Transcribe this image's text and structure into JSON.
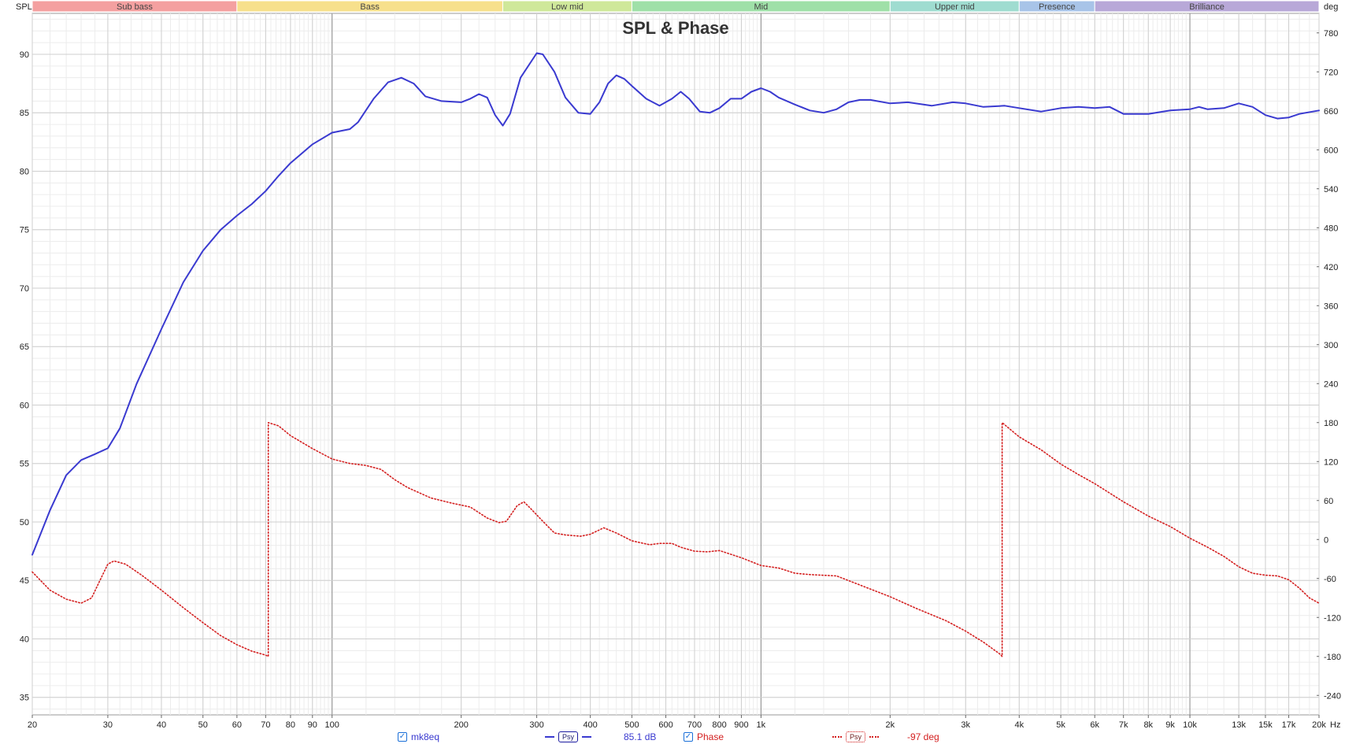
{
  "chart_data": {
    "type": "line",
    "title": "SPL & Phase",
    "y_left_label": "SPL",
    "y_right_label": "deg",
    "x_unit_label": "Hz",
    "x_scale": "log",
    "xlim": [
      20,
      20000
    ],
    "ylim_left": [
      33.5,
      93.5
    ],
    "ylim_right": [
      -270,
      810
    ],
    "grid": true,
    "x_major_ticks": [
      20,
      30,
      40,
      50,
      60,
      70,
      80,
      90,
      100,
      200,
      300,
      400,
      500,
      600,
      700,
      800,
      900,
      1000,
      2000,
      3000,
      4000,
      5000,
      6000,
      7000,
      8000,
      9000,
      10000,
      13000,
      15000,
      17000,
      20000
    ],
    "x_tick_labels": [
      "20",
      "30",
      "40",
      "50",
      "60",
      "70",
      "80",
      "90",
      "100",
      "200",
      "300",
      "400",
      "500",
      "600",
      "700",
      "800",
      "900",
      "1k",
      "2k",
      "3k",
      "4k",
      "5k",
      "6k",
      "7k",
      "8k",
      "9k",
      "10k",
      "13k",
      "15k",
      "17k",
      "20k"
    ],
    "y_left_ticks": [
      35,
      40,
      45,
      50,
      55,
      60,
      65,
      70,
      75,
      80,
      85,
      90
    ],
    "y_right_ticks": [
      -240,
      -180,
      -120,
      -60,
      0,
      60,
      120,
      180,
      240,
      300,
      360,
      420,
      480,
      540,
      600,
      660,
      720,
      780
    ],
    "bands": [
      {
        "name": "Sub bass",
        "from": 20,
        "to": 60,
        "color": "#f4a0a0"
      },
      {
        "name": "Bass",
        "from": 60,
        "to": 250,
        "color": "#f7e08c"
      },
      {
        "name": "Low mid",
        "from": 250,
        "to": 500,
        "color": "#cfe89a"
      },
      {
        "name": "Mid",
        "from": 500,
        "to": 2000,
        "color": "#9fe0a8"
      },
      {
        "name": "Upper mid",
        "from": 2000,
        "to": 4000,
        "color": "#9fdcd0"
      },
      {
        "name": "Presence",
        "from": 4000,
        "to": 6000,
        "color": "#a8c4e8"
      },
      {
        "name": "Brilliance",
        "from": 6000,
        "to": 20000,
        "color": "#b8a8d8"
      }
    ],
    "series": [
      {
        "name": "mk8eq",
        "axis": "left",
        "color": "#3a3ad0",
        "points": [
          [
            20,
            47.2
          ],
          [
            22,
            51
          ],
          [
            24,
            54
          ],
          [
            26,
            55.3
          ],
          [
            28,
            55.8
          ],
          [
            30,
            56.3
          ],
          [
            32,
            58
          ],
          [
            35,
            61.8
          ],
          [
            40,
            66.5
          ],
          [
            45,
            70.5
          ],
          [
            50,
            73.2
          ],
          [
            55,
            75
          ],
          [
            60,
            76.2
          ],
          [
            65,
            77.2
          ],
          [
            70,
            78.3
          ],
          [
            75,
            79.6
          ],
          [
            80,
            80.7
          ],
          [
            90,
            82.3
          ],
          [
            100,
            83.3
          ],
          [
            110,
            83.6
          ],
          [
            115,
            84.2
          ],
          [
            125,
            86.2
          ],
          [
            135,
            87.6
          ],
          [
            145,
            88.0
          ],
          [
            155,
            87.5
          ],
          [
            165,
            86.4
          ],
          [
            180,
            86.0
          ],
          [
            200,
            85.9
          ],
          [
            210,
            86.2
          ],
          [
            220,
            86.6
          ],
          [
            230,
            86.3
          ],
          [
            240,
            84.8
          ],
          [
            250,
            83.9
          ],
          [
            260,
            84.9
          ],
          [
            275,
            88.0
          ],
          [
            300,
            90.1
          ],
          [
            310,
            90.0
          ],
          [
            330,
            88.5
          ],
          [
            350,
            86.3
          ],
          [
            375,
            85.0
          ],
          [
            400,
            84.9
          ],
          [
            420,
            85.9
          ],
          [
            440,
            87.5
          ],
          [
            460,
            88.2
          ],
          [
            480,
            87.9
          ],
          [
            500,
            87.3
          ],
          [
            540,
            86.2
          ],
          [
            580,
            85.6
          ],
          [
            620,
            86.2
          ],
          [
            650,
            86.8
          ],
          [
            680,
            86.2
          ],
          [
            720,
            85.1
          ],
          [
            760,
            85.0
          ],
          [
            800,
            85.4
          ],
          [
            850,
            86.2
          ],
          [
            900,
            86.2
          ],
          [
            950,
            86.8
          ],
          [
            1000,
            87.1
          ],
          [
            1050,
            86.8
          ],
          [
            1100,
            86.3
          ],
          [
            1200,
            85.7
          ],
          [
            1300,
            85.2
          ],
          [
            1400,
            85.0
          ],
          [
            1500,
            85.3
          ],
          [
            1600,
            85.9
          ],
          [
            1700,
            86.1
          ],
          [
            1800,
            86.1
          ],
          [
            2000,
            85.8
          ],
          [
            2200,
            85.9
          ],
          [
            2500,
            85.6
          ],
          [
            2800,
            85.9
          ],
          [
            3000,
            85.8
          ],
          [
            3300,
            85.5
          ],
          [
            3700,
            85.6
          ],
          [
            4000,
            85.4
          ],
          [
            4500,
            85.1
          ],
          [
            5000,
            85.4
          ],
          [
            5500,
            85.5
          ],
          [
            6000,
            85.4
          ],
          [
            6500,
            85.5
          ],
          [
            7000,
            84.9
          ],
          [
            8000,
            84.9
          ],
          [
            9000,
            85.2
          ],
          [
            10000,
            85.3
          ],
          [
            10500,
            85.5
          ],
          [
            11000,
            85.3
          ],
          [
            12000,
            85.4
          ],
          [
            13000,
            85.8
          ],
          [
            14000,
            85.5
          ],
          [
            15000,
            84.8
          ],
          [
            16000,
            84.5
          ],
          [
            17000,
            84.6
          ],
          [
            18000,
            84.9
          ],
          [
            20000,
            85.2
          ]
        ]
      },
      {
        "name": "Phase",
        "axis": "right",
        "color": "#d42020",
        "points": [
          [
            20,
            -50
          ],
          [
            22,
            -78
          ],
          [
            24,
            -92
          ],
          [
            26,
            -98
          ],
          [
            27.5,
            -90
          ],
          [
            29,
            -58
          ],
          [
            30,
            -38
          ],
          [
            31,
            -33
          ],
          [
            33,
            -38
          ],
          [
            36,
            -55
          ],
          [
            40,
            -78
          ],
          [
            45,
            -105
          ],
          [
            50,
            -128
          ],
          [
            55,
            -148
          ],
          [
            60,
            -162
          ],
          [
            65,
            -172
          ],
          [
            70,
            -178
          ],
          [
            71,
            -180
          ],
          [
            71,
            180
          ],
          [
            75,
            175
          ],
          [
            80,
            160
          ],
          [
            90,
            140
          ],
          [
            100,
            124
          ],
          [
            110,
            117
          ],
          [
            120,
            114
          ],
          [
            130,
            108
          ],
          [
            140,
            92
          ],
          [
            150,
            80
          ],
          [
            170,
            64
          ],
          [
            190,
            56
          ],
          [
            210,
            50
          ],
          [
            230,
            33
          ],
          [
            245,
            26
          ],
          [
            255,
            28
          ],
          [
            270,
            52
          ],
          [
            280,
            58
          ],
          [
            290,
            48
          ],
          [
            310,
            28
          ],
          [
            330,
            10
          ],
          [
            350,
            7
          ],
          [
            380,
            5
          ],
          [
            400,
            8
          ],
          [
            430,
            18
          ],
          [
            460,
            10
          ],
          [
            500,
            -2
          ],
          [
            550,
            -8
          ],
          [
            580,
            -6
          ],
          [
            620,
            -6
          ],
          [
            650,
            -12
          ],
          [
            700,
            -18
          ],
          [
            750,
            -19
          ],
          [
            800,
            -17
          ],
          [
            900,
            -28
          ],
          [
            1000,
            -40
          ],
          [
            1100,
            -44
          ],
          [
            1200,
            -52
          ],
          [
            1300,
            -54
          ],
          [
            1500,
            -56
          ],
          [
            1700,
            -70
          ],
          [
            2000,
            -88
          ],
          [
            2300,
            -106
          ],
          [
            2700,
            -125
          ],
          [
            3000,
            -141
          ],
          [
            3300,
            -158
          ],
          [
            3600,
            -176
          ],
          [
            3650,
            -180
          ],
          [
            3650,
            180
          ],
          [
            4000,
            158
          ],
          [
            4500,
            138
          ],
          [
            5000,
            116
          ],
          [
            5500,
            100
          ],
          [
            6000,
            86
          ],
          [
            7000,
            58
          ],
          [
            8000,
            36
          ],
          [
            9000,
            20
          ],
          [
            10000,
            2
          ],
          [
            11000,
            -12
          ],
          [
            12000,
            -26
          ],
          [
            13000,
            -42
          ],
          [
            14000,
            -52
          ],
          [
            15000,
            -55
          ],
          [
            16000,
            -56
          ],
          [
            17000,
            -62
          ],
          [
            18000,
            -75
          ],
          [
            19000,
            -90
          ],
          [
            20000,
            -98
          ]
        ]
      }
    ]
  },
  "legend": {
    "spl_series": "mk8eq",
    "spl_readout": "85.1 dB",
    "phase_series": "Phase",
    "phase_readout": "-97 deg",
    "psy_label": "Psy",
    "check_glyph": "✓"
  }
}
